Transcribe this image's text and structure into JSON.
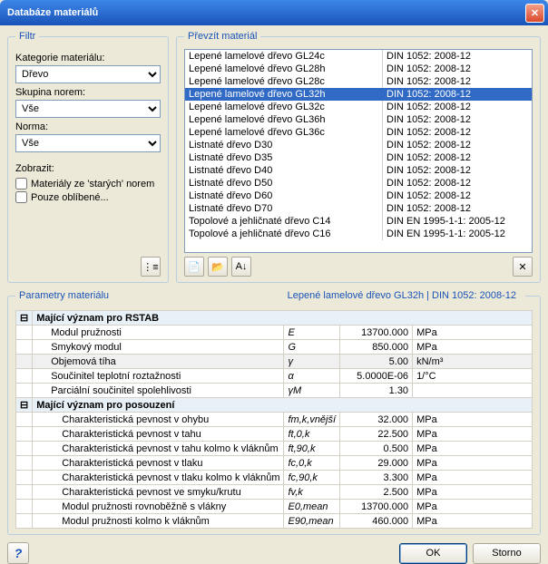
{
  "window": {
    "title": "Databáze materiálů"
  },
  "filter": {
    "legend": "Filtr",
    "category_label": "Kategorie materiálu:",
    "category_value": "Dřevo",
    "standard_group_label": "Skupina norem:",
    "standard_group_value": "Vše",
    "standard_label": "Norma:",
    "standard_value": "Vše",
    "show_label": "Zobrazit:",
    "old_standards_label": "Materiály ze 'starých' norem",
    "favorites_label": "Pouze oblíbené..."
  },
  "materials": {
    "legend": "Převzít materiál",
    "selected_index": 3,
    "rows": [
      {
        "name": "Lepené lamelové dřevo GL24c",
        "norm": "DIN 1052: 2008-12"
      },
      {
        "name": "Lepené lamelové dřevo GL28h",
        "norm": "DIN 1052: 2008-12"
      },
      {
        "name": "Lepené lamelové dřevo GL28c",
        "norm": "DIN 1052: 2008-12"
      },
      {
        "name": "Lepené lamelové dřevo GL32h",
        "norm": "DIN 1052: 2008-12"
      },
      {
        "name": "Lepené lamelové dřevo GL32c",
        "norm": "DIN 1052: 2008-12"
      },
      {
        "name": "Lepené lamelové dřevo GL36h",
        "norm": "DIN 1052: 2008-12"
      },
      {
        "name": "Lepené lamelové dřevo GL36c",
        "norm": "DIN 1052: 2008-12"
      },
      {
        "name": "Listnaté dřevo D30",
        "norm": "DIN 1052: 2008-12"
      },
      {
        "name": "Listnaté dřevo D35",
        "norm": "DIN 1052: 2008-12"
      },
      {
        "name": "Listnaté dřevo D40",
        "norm": "DIN 1052: 2008-12"
      },
      {
        "name": "Listnaté dřevo D50",
        "norm": "DIN 1052: 2008-12"
      },
      {
        "name": "Listnaté dřevo D60",
        "norm": "DIN 1052: 2008-12"
      },
      {
        "name": "Listnaté dřevo D70",
        "norm": "DIN 1052: 2008-12"
      },
      {
        "name": "Topolové a jehličnaté dřevo C14",
        "norm": "DIN EN 1995-1-1: 2005-12"
      },
      {
        "name": "Topolové a jehličnaté dřevo C16",
        "norm": "DIN EN 1995-1-1: 2005-12"
      }
    ]
  },
  "params": {
    "legend": "Parametry materiálu",
    "header_right": "Lepené lamelové dřevo GL32h | DIN 1052: 2008-12",
    "groups": [
      {
        "title": "Mající význam pro RSTAB",
        "rows": [
          {
            "label": "Modul pružnosti",
            "sym": "E",
            "val": "13700.000",
            "unit": "MPa",
            "indent": 1
          },
          {
            "label": "Smykový modul",
            "sym": "G",
            "val": "850.000",
            "unit": "MPa",
            "indent": 1
          },
          {
            "label": "Objemová tíha",
            "sym": "γ",
            "val": "5.00",
            "unit": "kN/m³",
            "indent": 1,
            "shade": true
          },
          {
            "label": "Součinitel teplotní roztažnosti",
            "sym": "α",
            "val": "5.0000E-06",
            "unit": "1/°C",
            "indent": 1
          },
          {
            "label": "Parciální součinitel spolehlivosti",
            "sym": "γM",
            "val": "1.30",
            "unit": "",
            "indent": 1
          }
        ]
      },
      {
        "title": "Mající význam pro posouzení",
        "rows": [
          {
            "label": "Charakteristická pevnost v ohybu",
            "sym": "fm,k,vnější",
            "val": "32.000",
            "unit": "MPa",
            "indent": 2
          },
          {
            "label": "Charakteristická pevnost v tahu",
            "sym": "ft,0,k",
            "val": "22.500",
            "unit": "MPa",
            "indent": 2
          },
          {
            "label": "Charakteristická pevnost v tahu kolmo k vláknům",
            "sym": "ft,90,k",
            "val": "0.500",
            "unit": "MPa",
            "indent": 2
          },
          {
            "label": "Charakteristická pevnost v tlaku",
            "sym": "fc,0,k",
            "val": "29.000",
            "unit": "MPa",
            "indent": 2
          },
          {
            "label": "Charakteristická pevnost v tlaku kolmo k vláknům",
            "sym": "fc,90,k",
            "val": "3.300",
            "unit": "MPa",
            "indent": 2
          },
          {
            "label": "Charakteristická pevnost ve smyku/krutu",
            "sym": "fv,k",
            "val": "2.500",
            "unit": "MPa",
            "indent": 2
          },
          {
            "label": "Modul pružnosti rovnoběžně s vlákny",
            "sym": "E0,mean",
            "val": "13700.000",
            "unit": "MPa",
            "indent": 2
          },
          {
            "label": "Modul pružnosti kolmo k vláknům",
            "sym": "E90,mean",
            "val": "460.000",
            "unit": "MPa",
            "indent": 2
          }
        ]
      }
    ]
  },
  "buttons": {
    "ok": "OK",
    "cancel": "Storno"
  }
}
